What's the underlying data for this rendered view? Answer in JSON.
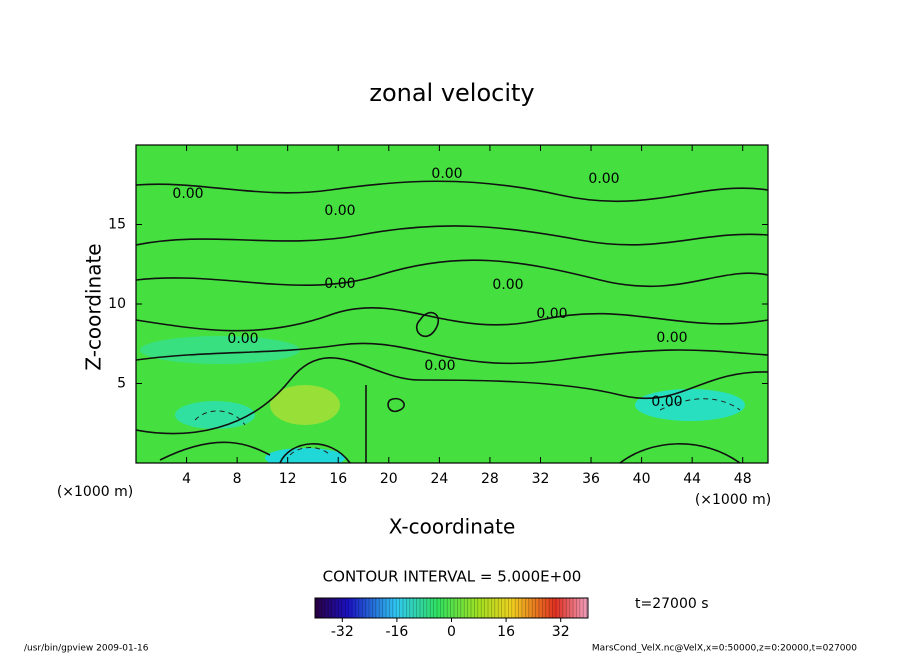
{
  "chart_data": {
    "type": "contour",
    "title": "zonal velocity",
    "xlabel": "X-coordinate",
    "ylabel": "Z-coordinate",
    "xunit": "(×1000 m)",
    "yunit": "(×1000 m)",
    "xlim": [
      0,
      50
    ],
    "xticks": [
      4,
      8,
      12,
      16,
      20,
      24,
      28,
      32,
      36,
      40,
      44,
      48
    ],
    "ylim": [
      0,
      20
    ],
    "yticks": [
      5,
      10,
      15
    ],
    "contour_labels": [
      "0.00",
      "0.00",
      "0.00",
      "0.00",
      "0.00",
      "0.00",
      "0.00",
      "0.00",
      "0.00",
      "0.00",
      "0.00"
    ],
    "contour_interval": "CONTOUR INTERVAL = 5.000E+00",
    "time": "t=27000 s",
    "colorbar": {
      "clim": [
        -40,
        40
      ],
      "ticks": [
        -32,
        -16,
        0,
        16,
        32
      ]
    },
    "footer_left": "/usr/bin/gpview  2009-01-16",
    "footer_right": "MarsCond_VelX.nc@VelX,x=0:50000,z=0:20000,t=027000"
  }
}
